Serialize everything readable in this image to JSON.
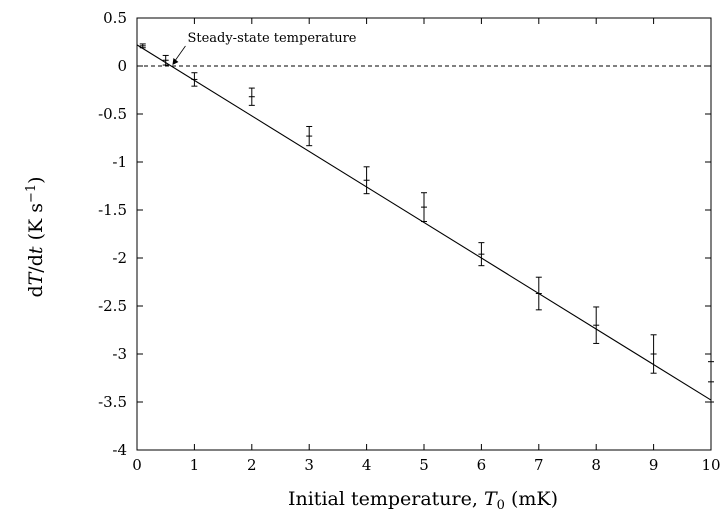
{
  "chart_data": {
    "type": "scatter",
    "title": "",
    "xlabel": "Initial temperature, T₀ (mK)",
    "ylabel": "dT/dt (K s⁻¹)",
    "xlim": [
      0,
      10
    ],
    "ylim": [
      -4,
      0.5
    ],
    "xticks": [
      "0",
      "1",
      "2",
      "3",
      "4",
      "5",
      "6",
      "7",
      "8",
      "9",
      "10"
    ],
    "yticks": [
      "0.5",
      "0",
      "-0.5",
      "-1",
      "-1.5",
      "-2",
      "-2.5",
      "-3",
      "-3.5",
      "-4"
    ],
    "grid": false,
    "legend": "none",
    "reference_line": {
      "y": 0,
      "style": "dashed"
    },
    "series": [
      {
        "points": [
          {
            "x": 0.1,
            "y": 0.21,
            "err": 0.02
          },
          {
            "x": 0.5,
            "y": 0.06,
            "err": 0.05
          },
          {
            "x": 1,
            "y": -0.14,
            "err": 0.07
          },
          {
            "x": 2,
            "y": -0.32,
            "err": 0.09
          },
          {
            "x": 3,
            "y": -0.73,
            "err": 0.1
          },
          {
            "x": 4,
            "y": -1.19,
            "err": 0.14
          },
          {
            "x": 5,
            "y": -1.47,
            "err": 0.15
          },
          {
            "x": 6,
            "y": -1.96,
            "err": 0.12
          },
          {
            "x": 7,
            "y": -2.37,
            "err": 0.17
          },
          {
            "x": 8,
            "y": -2.7,
            "err": 0.19
          },
          {
            "x": 9,
            "y": -3.0,
            "err": 0.2
          },
          {
            "x": 10,
            "y": -3.29,
            "err": 0.21
          }
        ]
      }
    ],
    "fit_line": {
      "x": [
        0,
        10
      ],
      "y": [
        0.22,
        -3.48
      ]
    },
    "annotation": {
      "text": "Steady-state temperature",
      "x": 0.6,
      "y": 0
    }
  }
}
